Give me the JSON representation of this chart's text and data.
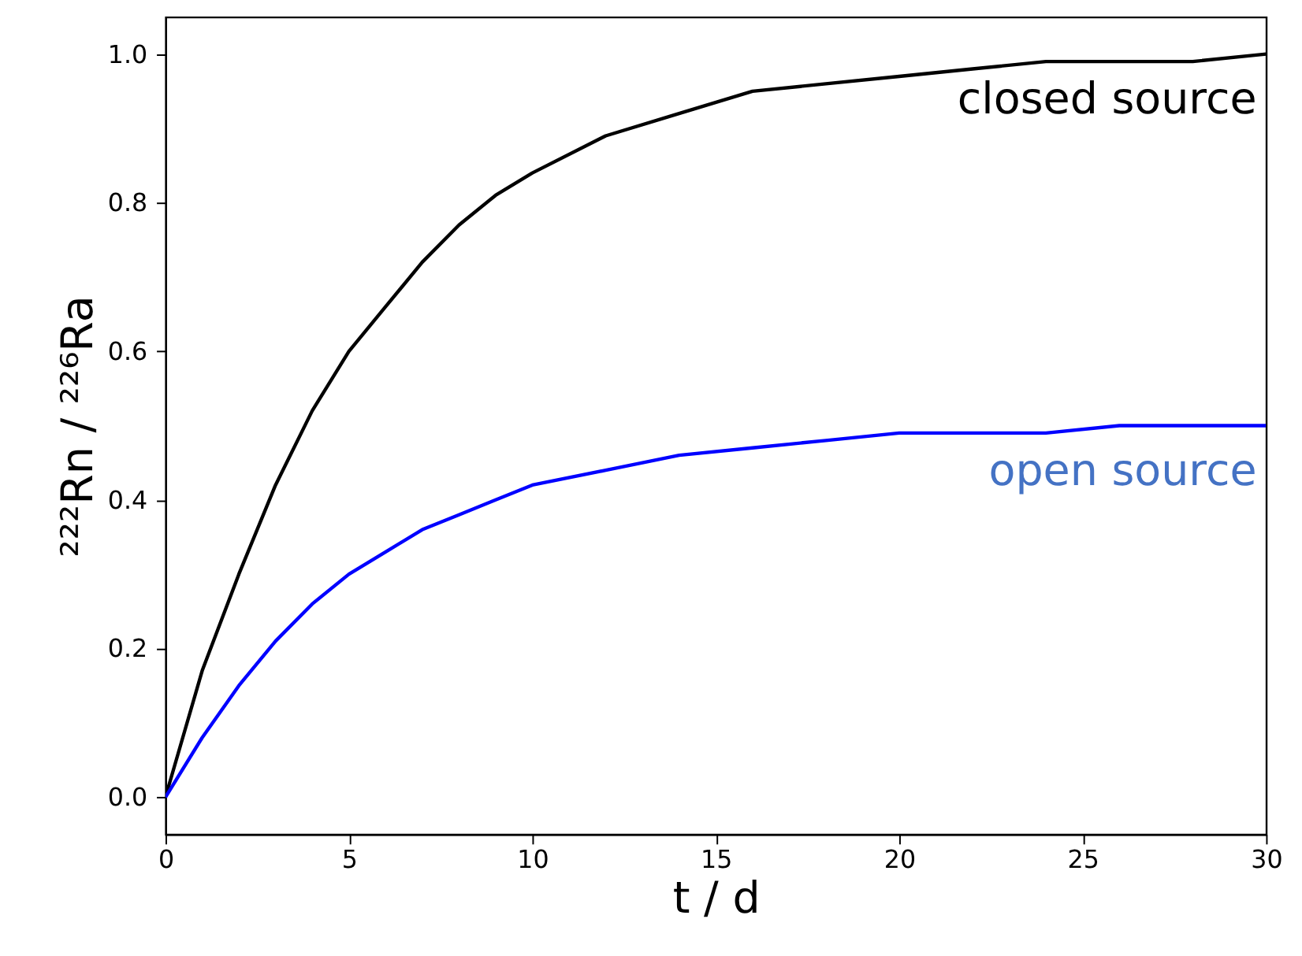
{
  "chart_data": {
    "type": "line",
    "xlabel": "t / d",
    "ylabel": "²²²Rn / ²²⁶Ra",
    "x": [
      0,
      1,
      2,
      3,
      4,
      5,
      6,
      7,
      8,
      9,
      10,
      12,
      14,
      16,
      18,
      20,
      22,
      24,
      26,
      28,
      30
    ],
    "series": [
      {
        "name": "closed source",
        "color": "#000000",
        "values": [
          0,
          0.17,
          0.3,
          0.42,
          0.52,
          0.6,
          0.66,
          0.72,
          0.77,
          0.81,
          0.84,
          0.89,
          0.92,
          0.95,
          0.96,
          0.97,
          0.98,
          0.99,
          0.99,
          0.99,
          1.0
        ]
      },
      {
        "name": "open source",
        "color": "#0000ff",
        "values": [
          0,
          0.08,
          0.15,
          0.21,
          0.26,
          0.3,
          0.33,
          0.36,
          0.38,
          0.4,
          0.42,
          0.44,
          0.46,
          0.47,
          0.48,
          0.49,
          0.49,
          0.49,
          0.5,
          0.5,
          0.5
        ]
      }
    ],
    "xlim": [
      0,
      30
    ],
    "xticks": [
      0,
      5,
      10,
      15,
      20,
      25,
      30
    ],
    "ylim": [
      -0.05,
      1.05
    ],
    "yticks": [
      {
        "value": 0,
        "label": "0.0"
      },
      {
        "value": 0.2,
        "label": "0.2"
      },
      {
        "value": 0.4,
        "label": "0.4"
      },
      {
        "value": 0.6,
        "label": "0.6"
      },
      {
        "value": 0.8,
        "label": "0.8"
      },
      {
        "value": 1.0,
        "label": "1.0"
      }
    ],
    "grid": false,
    "line_style": "solid",
    "marker": "none"
  }
}
